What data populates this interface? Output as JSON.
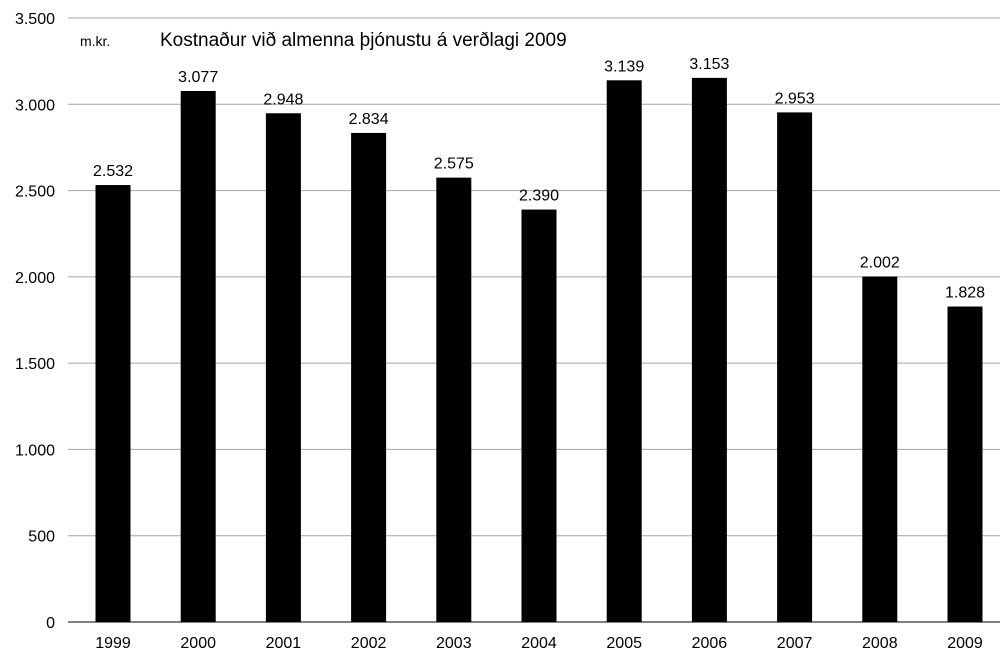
{
  "chart_data": {
    "type": "bar",
    "title": "Kostnaður við almenna þjónustu á verðlagi 2009",
    "unit_label": "m.kr.",
    "categories": [
      "1999",
      "2000",
      "2001",
      "2002",
      "2003",
      "2004",
      "2005",
      "2006",
      "2007",
      "2008",
      "2009"
    ],
    "values": [
      2532,
      3077,
      2948,
      2834,
      2575,
      2390,
      3139,
      3153,
      2953,
      2002,
      1828
    ],
    "value_labels": [
      "2.532",
      "3.077",
      "2.948",
      "2.834",
      "2.575",
      "2.390",
      "3.139",
      "3.153",
      "2.953",
      "2.002",
      "1.828"
    ],
    "y_ticks": [
      0,
      500,
      1000,
      1500,
      2000,
      2500,
      3000,
      3500
    ],
    "y_tick_labels": [
      "0",
      "500",
      "1.000",
      "1.500",
      "2.000",
      "2.500",
      "3.000",
      "3.500"
    ],
    "ylim": [
      0,
      3500
    ],
    "grid": true,
    "bar_color": "#000000",
    "grid_color": "#a6a6a6"
  }
}
